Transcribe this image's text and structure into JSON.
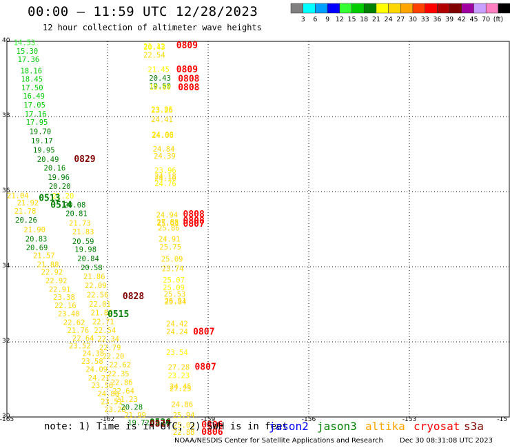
{
  "header": {
    "title": "00:00 – 11:59 UTC 12/28/2023",
    "subtitle": "12 hour collection of altimeter wave heights"
  },
  "colorbar": {
    "labels": [
      "3",
      "6",
      "9",
      "12",
      "15",
      "18",
      "21",
      "24",
      "27",
      "30",
      "33",
      "36",
      "39",
      "42",
      "45",
      "70",
      "(ft)"
    ],
    "colors": [
      "#808080",
      "#00ffff",
      "#00a0ff",
      "#0000ff",
      "#33ff33",
      "#00cc00",
      "#008000",
      "#ffff00",
      "#ffd700",
      "#ffa500",
      "#ff4000",
      "#ff0000",
      "#b00000",
      "#800000",
      "#a000a0",
      "#c8a0ff",
      "#ff80c0",
      "#000000"
    ]
  },
  "map": {
    "x_ticks": [
      "-165",
      "-162",
      "-159",
      "-156",
      "-153",
      "-15"
    ],
    "y_ticks": [
      "40",
      "38",
      "36",
      "34",
      "32",
      "30"
    ]
  },
  "colors": {
    "jason2": "#0000ff",
    "jason3": "#008000",
    "altika": "#ffa500",
    "cryosat": "#ff0000",
    "s3a": "#800000"
  },
  "legend": {
    "note": "note: 1) Time is in UTC; 2) SWH is in feet",
    "jason2": "jason2",
    "jason3": "jason3",
    "altika": "altika",
    "cryosat": "cryosat",
    "s3a": "s3a"
  },
  "footer": {
    "credit": "NOAA/NESDIS Center for Satellite Applications and Research",
    "timestamp": "Dec 30 08:31:08 UTC 2023"
  },
  "observations": [
    {
      "lon": -164.8,
      "lat": 39.9,
      "v": "14.53",
      "c": "#33ff33"
    },
    {
      "lon": -164.72,
      "lat": 39.67,
      "v": "15.30",
      "c": "#00cc00"
    },
    {
      "lon": -164.68,
      "lat": 39.45,
      "v": "17.36",
      "c": "#00cc00"
    },
    {
      "lon": -164.6,
      "lat": 39.15,
      "v": "18.16",
      "c": "#00cc00"
    },
    {
      "lon": -164.58,
      "lat": 38.93,
      "v": "18.45",
      "c": "#00cc00"
    },
    {
      "lon": -164.57,
      "lat": 38.7,
      "v": "17.50",
      "c": "#00cc00"
    },
    {
      "lon": -164.52,
      "lat": 38.48,
      "v": "16.49",
      "c": "#00cc00"
    },
    {
      "lon": -164.5,
      "lat": 38.24,
      "v": "17.05",
      "c": "#00cc00"
    },
    {
      "lon": -164.47,
      "lat": 38.0,
      "v": "17.16",
      "c": "#00cc00"
    },
    {
      "lon": -164.43,
      "lat": 37.78,
      "v": "17.95",
      "c": "#00cc00"
    },
    {
      "lon": -164.33,
      "lat": 37.53,
      "v": "19.70",
      "c": "#008000"
    },
    {
      "lon": -164.28,
      "lat": 37.28,
      "v": "19.17",
      "c": "#008000"
    },
    {
      "lon": -164.22,
      "lat": 37.04,
      "v": "19.95",
      "c": "#008000"
    },
    {
      "lon": -164.1,
      "lat": 36.79,
      "v": "20.49",
      "c": "#008000"
    },
    {
      "lon": -163.9,
      "lat": 36.56,
      "v": "20.16",
      "c": "#008000"
    },
    {
      "lon": -163.78,
      "lat": 36.31,
      "v": "19.96",
      "c": "#008000"
    },
    {
      "lon": -163.75,
      "lat": 36.07,
      "v": "20.20",
      "c": "#008000"
    },
    {
      "lon": -163.0,
      "lat": 36.79,
      "v": "0829",
      "c": "#800000",
      "big": true
    },
    {
      "lon": -165.0,
      "lat": 35.83,
      "v": "21.04",
      "c": "#ffd700"
    },
    {
      "lon": -164.7,
      "lat": 35.63,
      "v": "21.92",
      "c": "#ffd700"
    },
    {
      "lon": -164.78,
      "lat": 35.41,
      "v": "21.78",
      "c": "#ffd700"
    },
    {
      "lon": -164.75,
      "lat": 35.17,
      "v": "20.26",
      "c": "#008000"
    },
    {
      "lon": -164.5,
      "lat": 34.92,
      "v": "21.90",
      "c": "#ffd700"
    },
    {
      "lon": -164.45,
      "lat": 34.67,
      "v": "20.83",
      "c": "#008000"
    },
    {
      "lon": -164.43,
      "lat": 34.44,
      "v": "20.69",
      "c": "#008000"
    },
    {
      "lon": -164.22,
      "lat": 34.23,
      "v": "21.57",
      "c": "#ffd700"
    },
    {
      "lon": -164.1,
      "lat": 33.99,
      "v": "21.88",
      "c": "#ffd700"
    },
    {
      "lon": -163.98,
      "lat": 33.79,
      "v": "22.92",
      "c": "#ffd700"
    },
    {
      "lon": -163.85,
      "lat": 33.56,
      "v": "22.92",
      "c": "#ffd700"
    },
    {
      "lon": -163.75,
      "lat": 33.33,
      "v": "22.91",
      "c": "#ffd700"
    },
    {
      "lon": -163.62,
      "lat": 33.12,
      "v": "23.38",
      "c": "#ffd700"
    },
    {
      "lon": -163.58,
      "lat": 32.9,
      "v": "22.16",
      "c": "#ffd700"
    },
    {
      "lon": -163.48,
      "lat": 32.68,
      "v": "23.40",
      "c": "#ffd700"
    },
    {
      "lon": -163.32,
      "lat": 32.45,
      "v": "22.62",
      "c": "#ffd700"
    },
    {
      "lon": -163.2,
      "lat": 32.24,
      "v": "21.76",
      "c": "#ffd700"
    },
    {
      "lon": -163.05,
      "lat": 32.03,
      "v": "22.64",
      "c": "#ffd700"
    },
    {
      "lon": -163.15,
      "lat": 31.83,
      "v": "23.52",
      "c": "#ffd700"
    },
    {
      "lon": -162.75,
      "lat": 31.62,
      "v": "24.38",
      "c": "#ffd700"
    },
    {
      "lon": -162.78,
      "lat": 31.41,
      "v": "23.58",
      "c": "#ffd700"
    },
    {
      "lon": -162.65,
      "lat": 31.2,
      "v": "24.09",
      "c": "#ffd700"
    },
    {
      "lon": -162.58,
      "lat": 30.97,
      "v": "24.21",
      "c": "#ffd700"
    },
    {
      "lon": -162.48,
      "lat": 30.77,
      "v": "23.56",
      "c": "#ffd700"
    },
    {
      "lon": -162.3,
      "lat": 30.55,
      "v": "24.86",
      "c": "#ffd700"
    },
    {
      "lon": -162.2,
      "lat": 30.34,
      "v": "23.51",
      "c": "#ffd700"
    },
    {
      "lon": -162.1,
      "lat": 30.13,
      "v": "23.28",
      "c": "#ffd700"
    },
    {
      "lon": -163.65,
      "lat": 35.82,
      "v": "21.20",
      "c": "#ffff00"
    },
    {
      "lon": -163.3,
      "lat": 35.58,
      "v": "20.08",
      "c": "#008000"
    },
    {
      "lon": -163.25,
      "lat": 35.35,
      "v": "20.81",
      "c": "#008000"
    },
    {
      "lon": -163.15,
      "lat": 35.09,
      "v": "21.73",
      "c": "#ffd700"
    },
    {
      "lon": -163.05,
      "lat": 34.86,
      "v": "21.83",
      "c": "#ffd700"
    },
    {
      "lon": -163.05,
      "lat": 34.61,
      "v": "20.59",
      "c": "#008000"
    },
    {
      "lon": -162.98,
      "lat": 34.39,
      "v": "19.98",
      "c": "#008000"
    },
    {
      "lon": -162.9,
      "lat": 34.15,
      "v": "20.84",
      "c": "#008000"
    },
    {
      "lon": -162.8,
      "lat": 33.91,
      "v": "20.58",
      "c": "#008000"
    },
    {
      "lon": -162.72,
      "lat": 33.67,
      "v": "21.86",
      "c": "#ffd700"
    },
    {
      "lon": -162.68,
      "lat": 33.43,
      "v": "22.09",
      "c": "#ffd700"
    },
    {
      "lon": -162.62,
      "lat": 33.18,
      "v": "22.56",
      "c": "#ffd700"
    },
    {
      "lon": -162.55,
      "lat": 32.94,
      "v": "22.01",
      "c": "#ffd700"
    },
    {
      "lon": -162.5,
      "lat": 32.71,
      "v": "21.86",
      "c": "#ffd700"
    },
    {
      "lon": -162.45,
      "lat": 32.47,
      "v": "22.71",
      "c": "#ffd700"
    },
    {
      "lon": -162.4,
      "lat": 32.24,
      "v": "22.54",
      "c": "#ffd700"
    },
    {
      "lon": -162.3,
      "lat": 32.01,
      "v": "22.34",
      "c": "#ffd700"
    },
    {
      "lon": -162.25,
      "lat": 31.78,
      "v": "22.79",
      "c": "#ffd700"
    },
    {
      "lon": -162.15,
      "lat": 31.55,
      "v": "22.20",
      "c": "#ffd700"
    },
    {
      "lon": -161.95,
      "lat": 31.32,
      "v": "22.62",
      "c": "#ffd700"
    },
    {
      "lon": -162.0,
      "lat": 31.08,
      "v": "22.35",
      "c": "#ffd700"
    },
    {
      "lon": -161.9,
      "lat": 30.85,
      "v": "22.86",
      "c": "#ffd700"
    },
    {
      "lon": -161.85,
      "lat": 30.62,
      "v": "22.64",
      "c": "#ffd700"
    },
    {
      "lon": -161.75,
      "lat": 30.4,
      "v": "21.23",
      "c": "#ffd700"
    },
    {
      "lon": -161.6,
      "lat": 30.19,
      "v": "20.28",
      "c": "#008000"
    },
    {
      "lon": -161.5,
      "lat": 29.98,
      "v": "21.99",
      "c": "#ffd700"
    },
    {
      "lon": -161.4,
      "lat": 29.78,
      "v": "19.72",
      "c": "#008000"
    },
    {
      "lon": -164.05,
      "lat": 35.75,
      "v": "0513",
      "c": "#008000",
      "big": true
    },
    {
      "lon": -163.7,
      "lat": 35.57,
      "v": "0514",
      "c": "#008000",
      "big": true
    },
    {
      "lon": -162.0,
      "lat": 32.66,
      "v": "0515",
      "c": "#008000",
      "big": true
    },
    {
      "lon": -161.55,
      "lat": 33.14,
      "v": "0828",
      "c": "#800000",
      "big": true
    },
    {
      "lon": -160.75,
      "lat": 29.78,
      "v": "0526",
      "c": "#008000",
      "big": true
    },
    {
      "lon": -160.75,
      "lat": 29.74,
      "v": "0827",
      "c": "#800000",
      "big": true
    },
    {
      "lon": -160.93,
      "lat": 39.8,
      "v": "21.12",
      "c": "#ffff00"
    },
    {
      "lon": -160.93,
      "lat": 39.78,
      "v": "20.43",
      "c": "#ffff00"
    },
    {
      "lon": -160.93,
      "lat": 39.57,
      "v": "22.54",
      "c": "#ffd700"
    },
    {
      "lon": -160.8,
      "lat": 39.18,
      "v": "21.45",
      "c": "#ffff00"
    },
    {
      "lon": -160.76,
      "lat": 38.95,
      "v": "20.43",
      "c": "#008000"
    },
    {
      "lon": -160.76,
      "lat": 38.74,
      "v": "19.60",
      "c": "#008000"
    },
    {
      "lon": -160.76,
      "lat": 38.72,
      "v": "19.60",
      "c": "#ffff00"
    },
    {
      "lon": -159.95,
      "lat": 39.82,
      "v": "0809",
      "c": "#ff0000",
      "big": true
    },
    {
      "lon": -159.95,
      "lat": 39.17,
      "v": "0809",
      "c": "#ff0000",
      "big": true
    },
    {
      "lon": -159.9,
      "lat": 38.93,
      "v": "0808",
      "c": "#ff0000",
      "big": true
    },
    {
      "lon": -159.9,
      "lat": 38.7,
      "v": "0808",
      "c": "#ff0000",
      "big": true
    },
    {
      "lon": -160.7,
      "lat": 38.12,
      "v": "23.85",
      "c": "#ffff00"
    },
    {
      "lon": -160.7,
      "lat": 38.1,
      "v": "23.26",
      "c": "#ffd700"
    },
    {
      "lon": -160.7,
      "lat": 37.85,
      "v": "24.41",
      "c": "#ffd700"
    },
    {
      "lon": -160.68,
      "lat": 37.45,
      "v": "24.90",
      "c": "#ffff00"
    },
    {
      "lon": -160.68,
      "lat": 37.43,
      "v": "24.06",
      "c": "#ffd700"
    },
    {
      "lon": -160.65,
      "lat": 37.06,
      "v": "24.84",
      "c": "#ffd700"
    },
    {
      "lon": -160.62,
      "lat": 36.88,
      "v": "24.39",
      "c": "#ffd700"
    },
    {
      "lon": -160.6,
      "lat": 36.5,
      "v": "23.96",
      "c": "#ffff00"
    },
    {
      "lon": -160.6,
      "lat": 36.34,
      "v": "24.18",
      "c": "#ffd700"
    },
    {
      "lon": -160.6,
      "lat": 36.28,
      "v": "24.10",
      "c": "#ffd700"
    },
    {
      "lon": -160.6,
      "lat": 36.15,
      "v": "24.76",
      "c": "#ffff00"
    },
    {
      "lon": -160.55,
      "lat": 35.31,
      "v": "24.94",
      "c": "#ffd700"
    },
    {
      "lon": -160.53,
      "lat": 35.12,
      "v": "27.88",
      "c": "#ffd700"
    },
    {
      "lon": -160.53,
      "lat": 35.09,
      "v": "25.03",
      "c": "#ffd700"
    },
    {
      "lon": -160.5,
      "lat": 34.96,
      "v": "25.86",
      "c": "#ffd700"
    },
    {
      "lon": -160.48,
      "lat": 34.67,
      "v": "24.91",
      "c": "#ffd700"
    },
    {
      "lon": -160.45,
      "lat": 34.46,
      "v": "25.75",
      "c": "#ffd700"
    },
    {
      "lon": -160.4,
      "lat": 34.14,
      "v": "25.09",
      "c": "#ffd700"
    },
    {
      "lon": -160.38,
      "lat": 33.88,
      "v": "23.74",
      "c": "#ffd700"
    },
    {
      "lon": -159.75,
      "lat": 35.32,
      "v": "0808",
      "c": "#ff0000",
      "big": true
    },
    {
      "lon": -159.75,
      "lat": 35.15,
      "v": "0808",
      "c": "#ff0000",
      "big": true
    },
    {
      "lon": -159.75,
      "lat": 35.06,
      "v": "0807",
      "c": "#ff0000",
      "big": true
    },
    {
      "lon": -160.35,
      "lat": 33.58,
      "v": "25.07",
      "c": "#ffff00"
    },
    {
      "lon": -160.35,
      "lat": 33.38,
      "v": "25.09",
      "c": "#ffff00"
    },
    {
      "lon": -160.32,
      "lat": 33.2,
      "v": "25.53",
      "c": "#ffd700"
    },
    {
      "lon": -160.3,
      "lat": 33.03,
      "v": "26.91",
      "c": "#ffd700"
    },
    {
      "lon": -160.3,
      "lat": 33.0,
      "v": "25.84",
      "c": "#ffd700"
    },
    {
      "lon": -160.25,
      "lat": 32.41,
      "v": "24.42",
      "c": "#ffd700"
    },
    {
      "lon": -160.25,
      "lat": 32.2,
      "v": "24.24",
      "c": "#ffd700"
    },
    {
      "lon": -159.45,
      "lat": 32.19,
      "v": "0807",
      "c": "#ff0000",
      "big": true
    },
    {
      "lon": -160.25,
      "lat": 31.65,
      "v": "23.54",
      "c": "#ffff00"
    },
    {
      "lon": -160.2,
      "lat": 31.26,
      "v": "27.28",
      "c": "#ffd700"
    },
    {
      "lon": -160.2,
      "lat": 31.04,
      "v": "23.23",
      "c": "#ffff00"
    },
    {
      "lon": -159.4,
      "lat": 31.26,
      "v": "0807",
      "c": "#ff0000",
      "big": true
    },
    {
      "lon": -160.15,
      "lat": 30.74,
      "v": "24.45",
      "c": "#ffd700"
    },
    {
      "lon": -160.15,
      "lat": 30.69,
      "v": "27.25",
      "c": "#ffd700"
    },
    {
      "lon": -160.1,
      "lat": 30.27,
      "v": "24.86",
      "c": "#ffd700"
    },
    {
      "lon": -160.05,
      "lat": 29.98,
      "v": "25.94",
      "c": "#ffd700"
    },
    {
      "lon": -160.05,
      "lat": 29.72,
      "v": "25.03",
      "c": "#ffd700"
    },
    {
      "lon": -160.05,
      "lat": 29.52,
      "v": "22.88",
      "c": "#ffd700"
    },
    {
      "lon": -159.2,
      "lat": 29.72,
      "v": "0806",
      "c": "#ff0000",
      "big": true
    },
    {
      "lon": -159.2,
      "lat": 29.52,
      "v": "0806",
      "c": "#ff0000",
      "big": true
    }
  ]
}
